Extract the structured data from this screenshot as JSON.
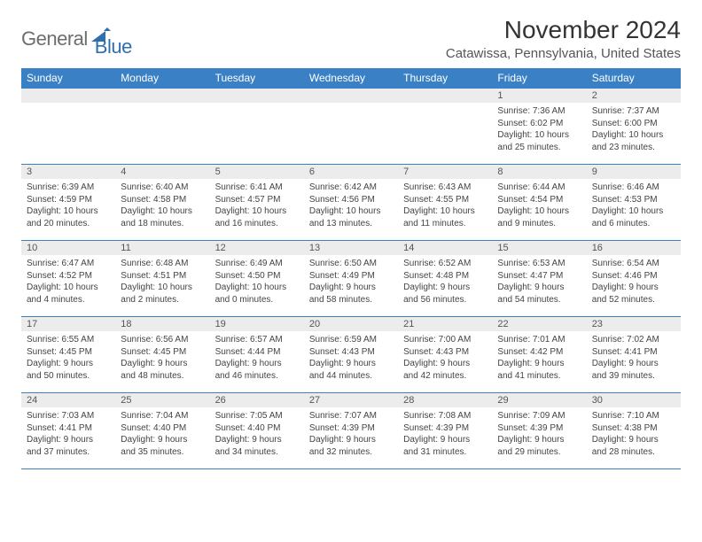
{
  "brand": {
    "text_general": "General",
    "text_blue": "Blue",
    "mark_color": "#2f6faf"
  },
  "title": "November 2024",
  "location": "Catawissa, Pennsylvania, United States",
  "colors": {
    "header_bg": "#3a80c4",
    "header_fg": "#ffffff",
    "daynum_bg": "#ececec",
    "row_border": "#3a80c4",
    "body_text": "#444444"
  },
  "weekdays": [
    "Sunday",
    "Monday",
    "Tuesday",
    "Wednesday",
    "Thursday",
    "Friday",
    "Saturday"
  ],
  "weeks": [
    [
      {
        "n": "",
        "sunrise": "",
        "sunset": "",
        "daylight": ""
      },
      {
        "n": "",
        "sunrise": "",
        "sunset": "",
        "daylight": ""
      },
      {
        "n": "",
        "sunrise": "",
        "sunset": "",
        "daylight": ""
      },
      {
        "n": "",
        "sunrise": "",
        "sunset": "",
        "daylight": ""
      },
      {
        "n": "",
        "sunrise": "",
        "sunset": "",
        "daylight": ""
      },
      {
        "n": "1",
        "sunrise": "Sunrise: 7:36 AM",
        "sunset": "Sunset: 6:02 PM",
        "daylight": "Daylight: 10 hours and 25 minutes."
      },
      {
        "n": "2",
        "sunrise": "Sunrise: 7:37 AM",
        "sunset": "Sunset: 6:00 PM",
        "daylight": "Daylight: 10 hours and 23 minutes."
      }
    ],
    [
      {
        "n": "3",
        "sunrise": "Sunrise: 6:39 AM",
        "sunset": "Sunset: 4:59 PM",
        "daylight": "Daylight: 10 hours and 20 minutes."
      },
      {
        "n": "4",
        "sunrise": "Sunrise: 6:40 AM",
        "sunset": "Sunset: 4:58 PM",
        "daylight": "Daylight: 10 hours and 18 minutes."
      },
      {
        "n": "5",
        "sunrise": "Sunrise: 6:41 AM",
        "sunset": "Sunset: 4:57 PM",
        "daylight": "Daylight: 10 hours and 16 minutes."
      },
      {
        "n": "6",
        "sunrise": "Sunrise: 6:42 AM",
        "sunset": "Sunset: 4:56 PM",
        "daylight": "Daylight: 10 hours and 13 minutes."
      },
      {
        "n": "7",
        "sunrise": "Sunrise: 6:43 AM",
        "sunset": "Sunset: 4:55 PM",
        "daylight": "Daylight: 10 hours and 11 minutes."
      },
      {
        "n": "8",
        "sunrise": "Sunrise: 6:44 AM",
        "sunset": "Sunset: 4:54 PM",
        "daylight": "Daylight: 10 hours and 9 minutes."
      },
      {
        "n": "9",
        "sunrise": "Sunrise: 6:46 AM",
        "sunset": "Sunset: 4:53 PM",
        "daylight": "Daylight: 10 hours and 6 minutes."
      }
    ],
    [
      {
        "n": "10",
        "sunrise": "Sunrise: 6:47 AM",
        "sunset": "Sunset: 4:52 PM",
        "daylight": "Daylight: 10 hours and 4 minutes."
      },
      {
        "n": "11",
        "sunrise": "Sunrise: 6:48 AM",
        "sunset": "Sunset: 4:51 PM",
        "daylight": "Daylight: 10 hours and 2 minutes."
      },
      {
        "n": "12",
        "sunrise": "Sunrise: 6:49 AM",
        "sunset": "Sunset: 4:50 PM",
        "daylight": "Daylight: 10 hours and 0 minutes."
      },
      {
        "n": "13",
        "sunrise": "Sunrise: 6:50 AM",
        "sunset": "Sunset: 4:49 PM",
        "daylight": "Daylight: 9 hours and 58 minutes."
      },
      {
        "n": "14",
        "sunrise": "Sunrise: 6:52 AM",
        "sunset": "Sunset: 4:48 PM",
        "daylight": "Daylight: 9 hours and 56 minutes."
      },
      {
        "n": "15",
        "sunrise": "Sunrise: 6:53 AM",
        "sunset": "Sunset: 4:47 PM",
        "daylight": "Daylight: 9 hours and 54 minutes."
      },
      {
        "n": "16",
        "sunrise": "Sunrise: 6:54 AM",
        "sunset": "Sunset: 4:46 PM",
        "daylight": "Daylight: 9 hours and 52 minutes."
      }
    ],
    [
      {
        "n": "17",
        "sunrise": "Sunrise: 6:55 AM",
        "sunset": "Sunset: 4:45 PM",
        "daylight": "Daylight: 9 hours and 50 minutes."
      },
      {
        "n": "18",
        "sunrise": "Sunrise: 6:56 AM",
        "sunset": "Sunset: 4:45 PM",
        "daylight": "Daylight: 9 hours and 48 minutes."
      },
      {
        "n": "19",
        "sunrise": "Sunrise: 6:57 AM",
        "sunset": "Sunset: 4:44 PM",
        "daylight": "Daylight: 9 hours and 46 minutes."
      },
      {
        "n": "20",
        "sunrise": "Sunrise: 6:59 AM",
        "sunset": "Sunset: 4:43 PM",
        "daylight": "Daylight: 9 hours and 44 minutes."
      },
      {
        "n": "21",
        "sunrise": "Sunrise: 7:00 AM",
        "sunset": "Sunset: 4:43 PM",
        "daylight": "Daylight: 9 hours and 42 minutes."
      },
      {
        "n": "22",
        "sunrise": "Sunrise: 7:01 AM",
        "sunset": "Sunset: 4:42 PM",
        "daylight": "Daylight: 9 hours and 41 minutes."
      },
      {
        "n": "23",
        "sunrise": "Sunrise: 7:02 AM",
        "sunset": "Sunset: 4:41 PM",
        "daylight": "Daylight: 9 hours and 39 minutes."
      }
    ],
    [
      {
        "n": "24",
        "sunrise": "Sunrise: 7:03 AM",
        "sunset": "Sunset: 4:41 PM",
        "daylight": "Daylight: 9 hours and 37 minutes."
      },
      {
        "n": "25",
        "sunrise": "Sunrise: 7:04 AM",
        "sunset": "Sunset: 4:40 PM",
        "daylight": "Daylight: 9 hours and 35 minutes."
      },
      {
        "n": "26",
        "sunrise": "Sunrise: 7:05 AM",
        "sunset": "Sunset: 4:40 PM",
        "daylight": "Daylight: 9 hours and 34 minutes."
      },
      {
        "n": "27",
        "sunrise": "Sunrise: 7:07 AM",
        "sunset": "Sunset: 4:39 PM",
        "daylight": "Daylight: 9 hours and 32 minutes."
      },
      {
        "n": "28",
        "sunrise": "Sunrise: 7:08 AM",
        "sunset": "Sunset: 4:39 PM",
        "daylight": "Daylight: 9 hours and 31 minutes."
      },
      {
        "n": "29",
        "sunrise": "Sunrise: 7:09 AM",
        "sunset": "Sunset: 4:39 PM",
        "daylight": "Daylight: 9 hours and 29 minutes."
      },
      {
        "n": "30",
        "sunrise": "Sunrise: 7:10 AM",
        "sunset": "Sunset: 4:38 PM",
        "daylight": "Daylight: 9 hours and 28 minutes."
      }
    ]
  ]
}
